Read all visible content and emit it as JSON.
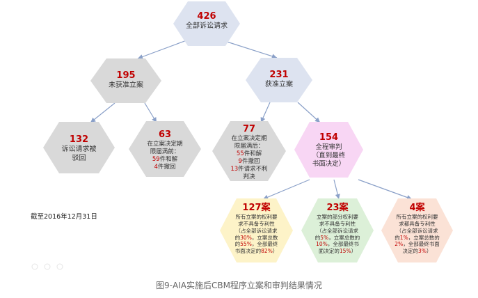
{
  "nodes": {
    "root": {
      "count": "426",
      "label": "全部诉讼请求"
    },
    "not_filed": {
      "count": "195",
      "label": "未获准立案"
    },
    "filed": {
      "count": "231",
      "label": "获准立案"
    },
    "dismissed": {
      "count": "132",
      "line1": "诉讼请求被",
      "line2": "驳回"
    },
    "deadline_left": {
      "count": "63",
      "line1": "在立案决定期",
      "line2": "限届满前：",
      "l3_num": "59",
      "l3_text": "件和解",
      "l4_num": "4",
      "l4_text": "件撤回"
    },
    "deadline_right": {
      "count": "77",
      "line1": "在立案决定期",
      "line2": "限届满后：",
      "l3_num": "55",
      "l3_text": "件和解",
      "l4_num": "9",
      "l4_text": "件撤回",
      "l5_num": "13",
      "l5_text": "件请求不利",
      "l6": "判决"
    },
    "full_trial": {
      "count": "154",
      "line1": "全程审判",
      "line2": "（直到最终",
      "line3": "书面决定）"
    },
    "all_unpatentable": {
      "count": "127案",
      "line1": "所有立案的权利要",
      "line2": "求不具备专利性",
      "line3": "（占全部诉讼请求",
      "line4a": "的",
      "p1": "30%",
      "line4b": "，立案总数",
      "line5a": "的",
      "p2": "55%",
      "line5b": "，全部最终",
      "line6a": "书面决定的",
      "p3": "82%",
      "line6b": "）"
    },
    "partial_unpatentable": {
      "count": "23案",
      "line1": "立案的部分权利要",
      "line2": "求不具备专利性",
      "line3": "（占全部诉讼请求",
      "line4a": "的",
      "p1": "5%",
      "line4b": "，立案总数的",
      "line5a": "",
      "p2": "10%",
      "line5b": "，全部最终书",
      "line6a": "面决定的",
      "p3": "15%",
      "line6b": "）"
    },
    "all_patentable": {
      "count": "4案",
      "line1": "所有立案的权利要",
      "line2": "求都具备专利性",
      "line3": "（占全部诉讼请求",
      "line4a": "的",
      "p1": "1%",
      "line4b": "，立案总数的",
      "line5a": "",
      "p2": "2%",
      "line5b": "，全部最终书面",
      "line6a": "决定的",
      "p3": "3%",
      "line6b": "）"
    }
  },
  "date_note": "截至2016年12月31日",
  "caption": "图9-AIA实施后CBM程序立案和审判结果情况",
  "colors": {
    "gray": "#d9d9d9",
    "light_blue": "#dde3f0",
    "pink": "#f8d6f4",
    "yellow": "#fdf3c8",
    "green": "#dcf0d8",
    "peach": "#fbe2d6",
    "arrow": "#8aa0c8"
  }
}
